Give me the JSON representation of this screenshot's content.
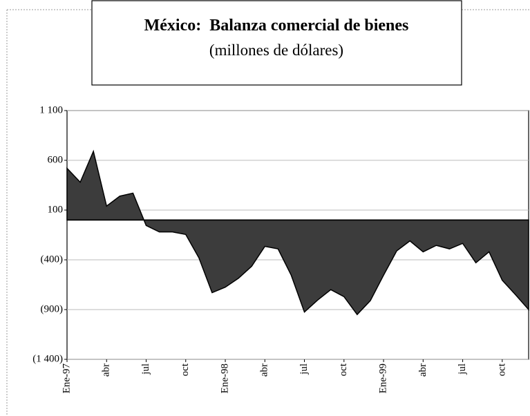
{
  "chart_data": {
    "type": "area",
    "title": "México:  Balanza comercial de bienes",
    "subtitle": "(millones de dólares)",
    "categories": [
      "Ene-97",
      null,
      null,
      "abr",
      null,
      null,
      "jul",
      null,
      null,
      "oct",
      null,
      null,
      "Ene-98",
      null,
      null,
      "abr",
      null,
      null,
      "jul",
      null,
      null,
      "oct",
      null,
      null,
      "Ene-99",
      null,
      null,
      "abr",
      null,
      null,
      "jul",
      null,
      null,
      "oct",
      null,
      null
    ],
    "series": [
      {
        "color": "#3c3c3c",
        "values": [
          520,
          380,
          690,
          140,
          240,
          270,
          -55,
          -120,
          -120,
          -145,
          -380,
          -730,
          -675,
          -585,
          -465,
          -265,
          -290,
          -555,
          -925,
          -805,
          -700,
          -770,
          -950,
          -810,
          -555,
          -310,
          -210,
          -320,
          -255,
          -290,
          -235,
          -430,
          -320,
          -605,
          -750,
          -900
        ]
      }
    ],
    "ylim": [
      -1400,
      1100
    ],
    "yticks": [
      {
        "value": -1400,
        "label": "(1 400)"
      },
      {
        "value": -900,
        "label": "(900)"
      },
      {
        "value": -400,
        "label": "(400)"
      },
      100,
      600,
      {
        "value": 1100,
        "label": "1 100"
      }
    ],
    "grid": true
  }
}
